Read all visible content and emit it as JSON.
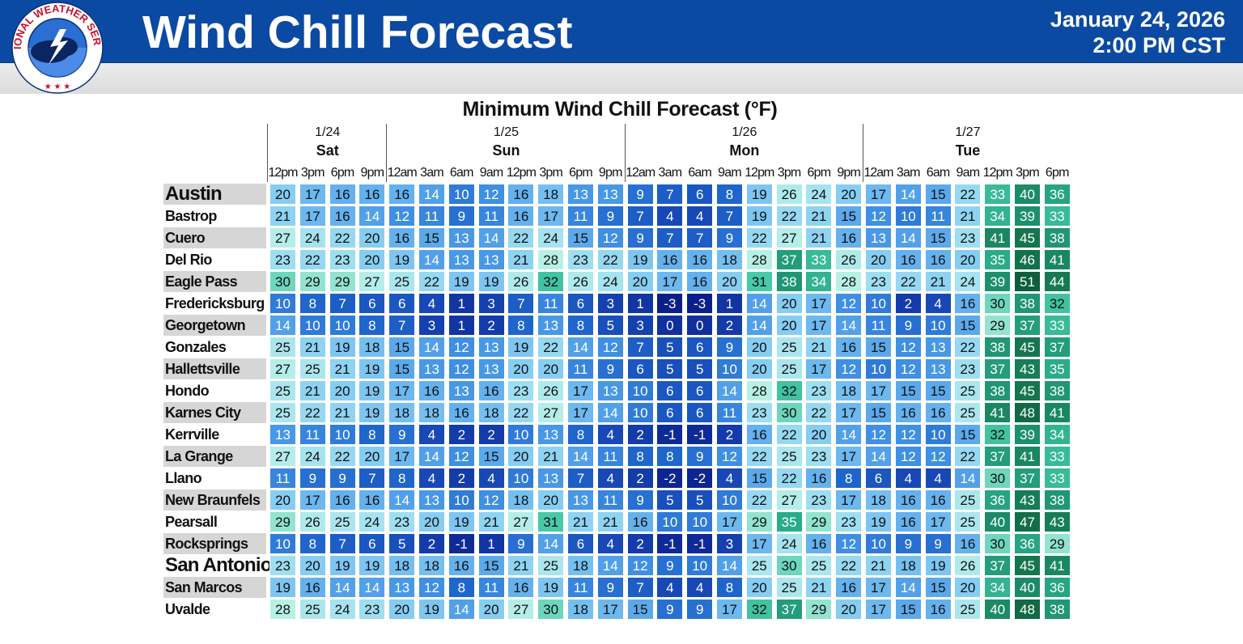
{
  "header": {
    "title": "Wind Chill Forecast",
    "date": "January 24, 2026",
    "time": "2:00 PM CST",
    "logo_text": "NATIONAL WEATHER SERVICE",
    "colors": {
      "header_bg": "#0b4aa2",
      "subbar_bg": "#e0e0e0"
    }
  },
  "chart_data": {
    "type": "table",
    "title": "Minimum Wind Chill Forecast (°F)",
    "days": [
      {
        "date": "1/24",
        "weekday": "Sat"
      },
      {
        "date": "1/25",
        "weekday": "Sun"
      },
      {
        "date": "1/26",
        "weekday": "Mon"
      },
      {
        "date": "1/27",
        "weekday": "Tue"
      }
    ],
    "columns": [
      "12pm",
      "3pm",
      "6pm",
      "9pm",
      "12am",
      "3am",
      "6am",
      "9am",
      "12pm",
      "3pm",
      "6pm",
      "9pm",
      "12am",
      "3am",
      "6am",
      "9am",
      "12pm",
      "3pm",
      "6pm",
      "9pm",
      "12am",
      "3am",
      "6am",
      "9am",
      "12pm",
      "3pm",
      "6pm"
    ],
    "rows": [
      {
        "city": "Austin",
        "values": [
          20,
          17,
          16,
          16,
          16,
          14,
          10,
          12,
          16,
          18,
          13,
          13,
          9,
          7,
          6,
          8,
          19,
          26,
          24,
          20,
          17,
          14,
          15,
          22,
          33,
          40,
          36
        ]
      },
      {
        "city": "Bastrop",
        "values": [
          21,
          17,
          16,
          14,
          12,
          11,
          9,
          11,
          16,
          17,
          11,
          9,
          7,
          4,
          4,
          7,
          19,
          22,
          21,
          15,
          12,
          10,
          11,
          21,
          34,
          39,
          33
        ]
      },
      {
        "city": "Cuero",
        "values": [
          27,
          24,
          22,
          20,
          16,
          15,
          13,
          14,
          22,
          24,
          15,
          12,
          9,
          7,
          7,
          9,
          22,
          27,
          21,
          16,
          13,
          14,
          15,
          23,
          41,
          45,
          38
        ]
      },
      {
        "city": "Del Rio",
        "values": [
          23,
          22,
          23,
          20,
          19,
          14,
          13,
          13,
          21,
          28,
          23,
          22,
          19,
          16,
          16,
          18,
          28,
          37,
          33,
          26,
          20,
          16,
          16,
          20,
          35,
          46,
          41
        ]
      },
      {
        "city": "Eagle Pass",
        "values": [
          30,
          29,
          29,
          27,
          25,
          22,
          19,
          19,
          26,
          32,
          26,
          24,
          20,
          17,
          16,
          20,
          31,
          38,
          34,
          28,
          23,
          22,
          21,
          24,
          39,
          51,
          44
        ]
      },
      {
        "city": "Fredericksburg",
        "values": [
          10,
          8,
          7,
          6,
          6,
          4,
          1,
          3,
          7,
          11,
          6,
          3,
          1,
          -3,
          -3,
          1,
          14,
          20,
          17,
          12,
          10,
          2,
          4,
          16,
          30,
          38,
          32
        ]
      },
      {
        "city": "Georgetown",
        "values": [
          14,
          10,
          10,
          8,
          7,
          3,
          1,
          2,
          8,
          13,
          8,
          5,
          3,
          0,
          0,
          2,
          14,
          20,
          17,
          14,
          11,
          9,
          10,
          15,
          29,
          37,
          33
        ]
      },
      {
        "city": "Gonzales",
        "values": [
          25,
          21,
          19,
          18,
          15,
          14,
          12,
          13,
          19,
          22,
          14,
          12,
          7,
          5,
          6,
          9,
          20,
          25,
          21,
          16,
          15,
          12,
          13,
          22,
          38,
          45,
          37
        ]
      },
      {
        "city": "Hallettsville",
        "values": [
          27,
          25,
          21,
          19,
          15,
          13,
          12,
          13,
          20,
          20,
          11,
          9,
          6,
          5,
          5,
          10,
          20,
          25,
          17,
          12,
          10,
          12,
          13,
          23,
          37,
          43,
          35
        ]
      },
      {
        "city": "Hondo",
        "values": [
          25,
          21,
          20,
          19,
          17,
          16,
          13,
          16,
          23,
          26,
          17,
          13,
          10,
          6,
          6,
          14,
          28,
          32,
          23,
          18,
          17,
          15,
          15,
          25,
          38,
          45,
          38
        ]
      },
      {
        "city": "Karnes City",
        "values": [
          25,
          22,
          21,
          19,
          18,
          18,
          16,
          18,
          22,
          27,
          17,
          14,
          10,
          6,
          6,
          11,
          23,
          30,
          22,
          17,
          15,
          16,
          16,
          25,
          41,
          48,
          41
        ]
      },
      {
        "city": "Kerrville",
        "values": [
          13,
          11,
          10,
          8,
          9,
          4,
          2,
          2,
          10,
          13,
          8,
          4,
          2,
          -1,
          -1,
          2,
          16,
          22,
          20,
          14,
          12,
          12,
          10,
          15,
          32,
          39,
          34
        ]
      },
      {
        "city": "La Grange",
        "values": [
          27,
          24,
          22,
          20,
          17,
          14,
          12,
          15,
          20,
          21,
          14,
          11,
          8,
          8,
          9,
          12,
          22,
          25,
          23,
          17,
          14,
          12,
          12,
          22,
          37,
          41,
          33
        ]
      },
      {
        "city": "Llano",
        "values": [
          11,
          9,
          9,
          7,
          8,
          4,
          2,
          4,
          10,
          13,
          7,
          4,
          2,
          -2,
          -2,
          4,
          15,
          22,
          16,
          8,
          6,
          4,
          4,
          14,
          30,
          37,
          33
        ]
      },
      {
        "city": "New Braunfels",
        "values": [
          20,
          17,
          16,
          16,
          14,
          13,
          10,
          12,
          18,
          20,
          13,
          11,
          9,
          5,
          5,
          10,
          22,
          27,
          23,
          17,
          18,
          16,
          16,
          25,
          36,
          43,
          38
        ]
      },
      {
        "city": "Pearsall",
        "values": [
          29,
          26,
          25,
          24,
          23,
          20,
          19,
          21,
          27,
          31,
          21,
          21,
          16,
          10,
          10,
          17,
          29,
          35,
          29,
          23,
          19,
          16,
          17,
          25,
          40,
          47,
          43
        ]
      },
      {
        "city": "Rocksprings",
        "values": [
          10,
          8,
          7,
          6,
          5,
          2,
          -1,
          1,
          9,
          14,
          6,
          4,
          2,
          -1,
          -1,
          3,
          17,
          24,
          16,
          12,
          10,
          9,
          9,
          16,
          30,
          36,
          29
        ]
      },
      {
        "city": "San Antonio",
        "values": [
          23,
          20,
          19,
          19,
          18,
          18,
          16,
          15,
          21,
          25,
          18,
          14,
          12,
          9,
          10,
          14,
          25,
          30,
          25,
          22,
          21,
          18,
          19,
          26,
          37,
          45,
          41
        ]
      },
      {
        "city": "San Marcos",
        "values": [
          19,
          16,
          14,
          14,
          13,
          12,
          8,
          11,
          16,
          19,
          11,
          9,
          7,
          4,
          4,
          8,
          20,
          25,
          21,
          16,
          17,
          14,
          15,
          20,
          34,
          40,
          36
        ]
      },
      {
        "city": "Uvalde",
        "values": [
          28,
          25,
          24,
          23,
          20,
          19,
          14,
          20,
          27,
          30,
          18,
          17,
          15,
          9,
          9,
          17,
          32,
          37,
          29,
          20,
          17,
          15,
          16,
          25,
          40,
          48,
          38
        ]
      }
    ]
  }
}
